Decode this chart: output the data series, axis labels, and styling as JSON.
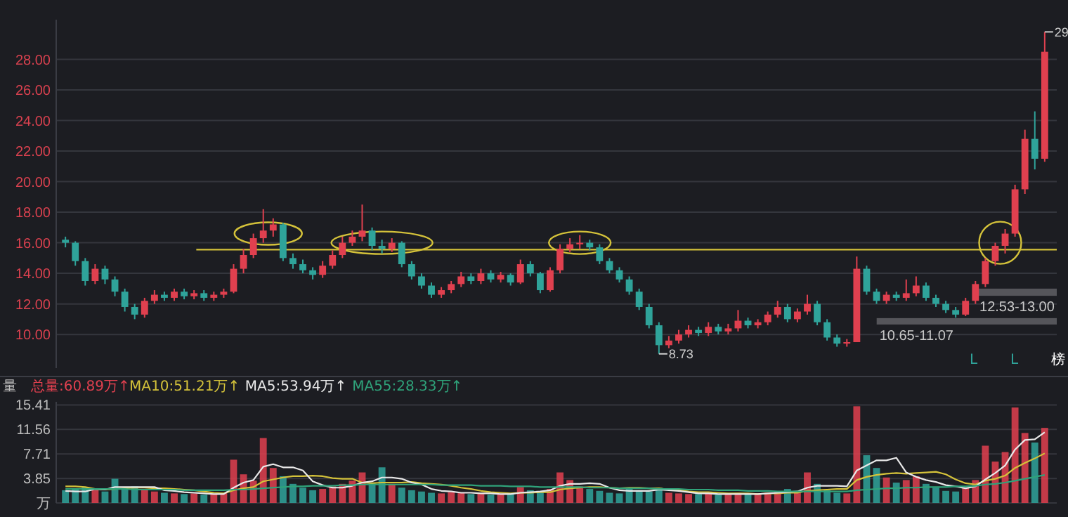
{
  "chart_data": [
    {
      "type": "candlestick",
      "categories": [
        null,
        null,
        null,
        null,
        null,
        null,
        null,
        null,
        null,
        null,
        null,
        null,
        null,
        null,
        null,
        null,
        null,
        null,
        null,
        null,
        null,
        null,
        null,
        null,
        null,
        null,
        null,
        null,
        null,
        null,
        null,
        null,
        null,
        null,
        null,
        null,
        null,
        null,
        null,
        null,
        null,
        null,
        null,
        null,
        null,
        null,
        null,
        null,
        null,
        null,
        null,
        null,
        null,
        null,
        null,
        null,
        null,
        null,
        null,
        null,
        null,
        null,
        null,
        null,
        null,
        null,
        null,
        null,
        null,
        null,
        null,
        null,
        null,
        null,
        null,
        null,
        null,
        null,
        null,
        null,
        null,
        null,
        null,
        null,
        null,
        null,
        null,
        null,
        null,
        null,
        null,
        null,
        null,
        null,
        null,
        null,
        null,
        null,
        null,
        null
      ],
      "ohlc": [
        [
          16.2,
          16.4,
          15.7,
          16.0
        ],
        [
          16.0,
          16.1,
          14.5,
          14.8
        ],
        [
          14.8,
          15.0,
          13.2,
          13.5
        ],
        [
          13.5,
          14.6,
          13.3,
          14.3
        ],
        [
          14.3,
          14.5,
          13.3,
          13.6
        ],
        [
          13.6,
          13.8,
          12.5,
          12.8
        ],
        [
          12.8,
          13.0,
          11.5,
          11.8
        ],
        [
          11.8,
          12.0,
          11.0,
          11.3
        ],
        [
          11.3,
          12.4,
          11.1,
          12.2
        ],
        [
          12.2,
          12.9,
          12.0,
          12.6
        ],
        [
          12.6,
          12.8,
          12.2,
          12.4
        ],
        [
          12.4,
          13.0,
          12.2,
          12.8
        ],
        [
          12.8,
          13.0,
          12.3,
          12.5
        ],
        [
          12.5,
          12.9,
          12.3,
          12.7
        ],
        [
          12.7,
          12.9,
          12.2,
          12.4
        ],
        [
          12.4,
          12.8,
          12.2,
          12.6
        ],
        [
          12.6,
          13.0,
          12.4,
          12.8
        ],
        [
          12.8,
          14.6,
          12.7,
          14.3
        ],
        [
          14.3,
          15.6,
          14.0,
          15.2
        ],
        [
          15.2,
          16.6,
          15.0,
          16.3
        ],
        [
          16.3,
          18.2,
          16.0,
          16.8
        ],
        [
          16.8,
          17.6,
          16.4,
          17.2
        ],
        [
          17.2,
          17.3,
          14.8,
          15.0
        ],
        [
          15.0,
          15.3,
          14.3,
          14.6
        ],
        [
          14.6,
          14.9,
          14.0,
          14.2
        ],
        [
          14.2,
          14.4,
          13.6,
          13.9
        ],
        [
          13.9,
          14.8,
          13.7,
          14.5
        ],
        [
          14.5,
          15.5,
          14.3,
          15.2
        ],
        [
          15.2,
          16.4,
          15.0,
          16.0
        ],
        [
          16.0,
          16.8,
          15.8,
          16.4
        ],
        [
          16.4,
          18.5,
          16.1,
          16.8
        ],
        [
          16.8,
          17.0,
          15.5,
          15.8
        ],
        [
          15.8,
          16.2,
          15.3,
          15.6
        ],
        [
          15.6,
          16.3,
          15.4,
          16.0
        ],
        [
          16.0,
          16.1,
          14.4,
          14.6
        ],
        [
          14.6,
          14.8,
          13.6,
          13.8
        ],
        [
          13.8,
          14.0,
          13.0,
          13.2
        ],
        [
          13.2,
          13.4,
          12.4,
          12.6
        ],
        [
          12.6,
          13.1,
          12.4,
          12.9
        ],
        [
          12.9,
          13.5,
          12.7,
          13.3
        ],
        [
          13.3,
          14.1,
          13.1,
          13.8
        ],
        [
          13.8,
          14.0,
          13.3,
          13.5
        ],
        [
          13.5,
          14.3,
          13.3,
          14.0
        ],
        [
          14.0,
          14.2,
          13.4,
          13.6
        ],
        [
          13.6,
          14.1,
          13.4,
          13.9
        ],
        [
          13.9,
          14.0,
          13.2,
          13.4
        ],
        [
          13.4,
          14.9,
          13.3,
          14.6
        ],
        [
          14.6,
          14.8,
          13.8,
          14.0
        ],
        [
          14.0,
          14.1,
          12.7,
          12.9
        ],
        [
          12.9,
          14.4,
          12.8,
          14.2
        ],
        [
          14.2,
          15.9,
          14.0,
          15.6
        ],
        [
          15.6,
          16.3,
          15.4,
          15.9
        ],
        [
          15.9,
          16.5,
          15.6,
          16.0
        ],
        [
          16.0,
          16.2,
          15.5,
          15.7
        ],
        [
          15.7,
          15.9,
          14.6,
          14.8
        ],
        [
          14.8,
          15.0,
          14.0,
          14.2
        ],
        [
          14.2,
          14.4,
          13.4,
          13.6
        ],
        [
          13.6,
          13.8,
          12.6,
          12.8
        ],
        [
          12.8,
          13.0,
          11.6,
          11.8
        ],
        [
          11.8,
          12.0,
          10.4,
          10.6
        ],
        [
          10.6,
          10.8,
          8.73,
          9.3
        ],
        [
          9.3,
          9.9,
          9.1,
          9.6
        ],
        [
          9.6,
          10.3,
          9.4,
          10.0
        ],
        [
          10.0,
          10.6,
          9.8,
          10.3
        ],
        [
          10.3,
          10.5,
          9.9,
          10.1
        ],
        [
          10.1,
          10.8,
          9.9,
          10.5
        ],
        [
          10.5,
          10.7,
          10.0,
          10.2
        ],
        [
          10.2,
          10.7,
          10.0,
          10.4
        ],
        [
          10.4,
          11.6,
          10.2,
          10.9
        ],
        [
          10.9,
          11.1,
          10.4,
          10.6
        ],
        [
          10.6,
          11.0,
          10.4,
          10.8
        ],
        [
          10.8,
          11.5,
          10.6,
          11.3
        ],
        [
          11.3,
          12.2,
          11.1,
          11.8
        ],
        [
          11.8,
          12.0,
          10.8,
          11.0
        ],
        [
          11.0,
          11.7,
          10.8,
          11.5
        ],
        [
          11.5,
          12.6,
          11.3,
          12.0
        ],
        [
          12.0,
          12.2,
          10.6,
          10.8
        ],
        [
          10.8,
          11.0,
          9.6,
          9.8
        ],
        [
          9.8,
          10.0,
          9.2,
          9.4
        ],
        [
          9.4,
          9.7,
          9.2,
          9.5
        ],
        [
          9.5,
          15.1,
          9.5,
          14.3
        ],
        [
          14.3,
          14.5,
          12.6,
          12.8
        ],
        [
          12.8,
          13.0,
          12.0,
          12.2
        ],
        [
          12.2,
          12.8,
          12.0,
          12.6
        ],
        [
          12.6,
          12.8,
          12.2,
          12.4
        ],
        [
          12.4,
          13.6,
          12.2,
          12.7
        ],
        [
          12.7,
          13.8,
          12.5,
          13.2
        ],
        [
          13.2,
          13.4,
          12.2,
          12.4
        ],
        [
          12.4,
          12.6,
          11.8,
          12.0
        ],
        [
          12.0,
          12.2,
          11.4,
          11.6
        ],
        [
          11.6,
          11.8,
          11.1,
          11.3
        ],
        [
          11.3,
          12.4,
          11.2,
          12.2
        ],
        [
          12.2,
          13.5,
          12.0,
          13.3
        ],
        [
          13.3,
          15.0,
          13.1,
          14.8
        ],
        [
          14.8,
          16.0,
          14.5,
          15.8
        ],
        [
          15.8,
          16.9,
          15.3,
          16.6
        ],
        [
          16.6,
          19.8,
          16.4,
          19.5
        ],
        [
          19.5,
          23.4,
          19.2,
          22.8
        ],
        [
          22.8,
          24.6,
          20.8,
          21.5
        ],
        [
          21.5,
          29.8,
          21.3,
          28.5
        ]
      ],
      "ylim": [
        7.8,
        30.6
      ],
      "yticks": [
        {
          "value": 10,
          "label": "10.00"
        },
        {
          "value": 12,
          "label": "12.00"
        },
        {
          "value": 14,
          "label": "14.00"
        },
        {
          "value": 16,
          "label": "16.00"
        },
        {
          "value": 18,
          "label": "18.00"
        },
        {
          "value": 20,
          "label": "20.00"
        },
        {
          "value": 22,
          "label": "22.00"
        },
        {
          "value": 24,
          "label": "24.00"
        },
        {
          "value": 26,
          "label": "26.00"
        },
        {
          "value": 28,
          "label": "28.00"
        }
      ],
      "grid": "y",
      "ref_lines": [
        {
          "axis": "y",
          "value": 15.55,
          "color": "#d4c23a"
        }
      ],
      "bands": [
        {
          "axis": "y",
          "from": 12.53,
          "to": 13.0,
          "label": "12.53-13.00",
          "color": "#6e6e72"
        },
        {
          "axis": "y",
          "from": 10.65,
          "to": 11.07,
          "label": "10.65-11.07",
          "color": "#6e6e72"
        }
      ],
      "annotations": [
        "8.73",
        "29",
        "L",
        "L",
        "榜"
      ]
    },
    {
      "type": "bar",
      "ylabel": "量",
      "categories": [
        null,
        null,
        null,
        null,
        null,
        null,
        null,
        null,
        null,
        null,
        null,
        null,
        null,
        null,
        null,
        null,
        null,
        null,
        null,
        null,
        null,
        null,
        null,
        null,
        null,
        null,
        null,
        null,
        null,
        null,
        null,
        null,
        null,
        null,
        null,
        null,
        null,
        null,
        null,
        null,
        null,
        null,
        null,
        null,
        null,
        null,
        null,
        null,
        null,
        null,
        null,
        null,
        null,
        null,
        null,
        null,
        null,
        null,
        null,
        null,
        null,
        null,
        null,
        null,
        null,
        null,
        null,
        null,
        null,
        null,
        null,
        null,
        null,
        null,
        null,
        null,
        null,
        null,
        null,
        null,
        null,
        null,
        null,
        null,
        null,
        null,
        null,
        null,
        null,
        null,
        null,
        null,
        null,
        null,
        null,
        null,
        null,
        null,
        null,
        null
      ],
      "ylim": [
        0,
        15.9
      ],
      "yticks": [
        {
          "value": 0,
          "label": "万"
        },
        3.85,
        7.71,
        11.56,
        15.41
      ],
      "grid": "y",
      "legend": "top left",
      "series": [
        {
          "name": "总量:60.89万↑",
          "type": "bar",
          "color": "#e0404f",
          "values": [
            2.0,
            2.2,
            2.5,
            2.0,
            1.8,
            3.8,
            2.2,
            2.6,
            2.0,
            1.8,
            1.6,
            1.5,
            1.4,
            1.5,
            1.3,
            1.4,
            1.6,
            6.8,
            4.5,
            3.5,
            10.2,
            5.5,
            4.2,
            3.0,
            2.4,
            2.0,
            2.2,
            2.6,
            3.0,
            3.5,
            4.8,
            3.2,
            5.6,
            3.0,
            2.4,
            2.0,
            1.8,
            1.6,
            1.5,
            1.7,
            1.6,
            1.4,
            1.5,
            1.3,
            1.4,
            1.5,
            2.5,
            2.0,
            1.8,
            2.2,
            4.8,
            3.6,
            2.6,
            2.2,
            1.9,
            1.6,
            1.5,
            2.4,
            2.0,
            1.8,
            2.4,
            1.6,
            1.5,
            1.4,
            1.4,
            1.5,
            1.3,
            1.4,
            1.6,
            1.4,
            1.5,
            1.6,
            1.8,
            2.2,
            1.7,
            4.8,
            3.0,
            2.0,
            1.6,
            1.5,
            15.2,
            7.5,
            5.5,
            4.0,
            3.2,
            3.6,
            4.2,
            3.0,
            2.4,
            1.9,
            1.8,
            2.4,
            3.6,
            9.0,
            6.5,
            8.0,
            15.0,
            11.0,
            9.5,
            11.8
          ],
          "colors": [
            "#2fa39a",
            "#2fa39a",
            "#2fa39a",
            "#e0404f",
            "#2fa39a",
            "#2fa39a",
            "#2fa39a",
            "#2fa39a",
            "#e0404f",
            "#e0404f",
            "#2fa39a",
            "#e0404f",
            "#2fa39a",
            "#e0404f",
            "#2fa39a",
            "#e0404f",
            "#e0404f",
            "#e0404f",
            "#e0404f",
            "#e0404f",
            "#e0404f",
            "#e0404f",
            "#2fa39a",
            "#2fa39a",
            "#2fa39a",
            "#2fa39a",
            "#e0404f",
            "#e0404f",
            "#e0404f",
            "#e0404f",
            "#e0404f",
            "#2fa39a",
            "#2fa39a",
            "#e0404f",
            "#2fa39a",
            "#2fa39a",
            "#2fa39a",
            "#2fa39a",
            "#e0404f",
            "#e0404f",
            "#e0404f",
            "#2fa39a",
            "#e0404f",
            "#2fa39a",
            "#e0404f",
            "#2fa39a",
            "#e0404f",
            "#2fa39a",
            "#2fa39a",
            "#e0404f",
            "#e0404f",
            "#e0404f",
            "#e0404f",
            "#2fa39a",
            "#2fa39a",
            "#2fa39a",
            "#2fa39a",
            "#2fa39a",
            "#2fa39a",
            "#2fa39a",
            "#2fa39a",
            "#e0404f",
            "#e0404f",
            "#e0404f",
            "#2fa39a",
            "#e0404f",
            "#2fa39a",
            "#e0404f",
            "#e0404f",
            "#2fa39a",
            "#e0404f",
            "#e0404f",
            "#e0404f",
            "#2fa39a",
            "#e0404f",
            "#e0404f",
            "#2fa39a",
            "#2fa39a",
            "#2fa39a",
            "#e0404f",
            "#e0404f",
            "#2fa39a",
            "#2fa39a",
            "#e0404f",
            "#2fa39a",
            "#e0404f",
            "#e0404f",
            "#2fa39a",
            "#2fa39a",
            "#2fa39a",
            "#2fa39a",
            "#e0404f",
            "#e0404f",
            "#e0404f",
            "#e0404f",
            "#e0404f",
            "#e0404f",
            "#e0404f",
            "#2fa39a",
            "#e0404f"
          ]
        },
        {
          "name": "MA10:51.21万↑",
          "type": "line",
          "color": "#d4c23a",
          "values": [
            2.6,
            2.6,
            2.5,
            2.2,
            2.1,
            2.2,
            2.3,
            2.4,
            2.4,
            2.3,
            2.3,
            2.2,
            2.1,
            2.0,
            1.8,
            1.6,
            1.5,
            2.0,
            2.3,
            2.5,
            3.4,
            3.7,
            4.0,
            4.2,
            4.2,
            4.3,
            4.2,
            3.9,
            3.8,
            3.8,
            3.2,
            3.1,
            3.2,
            3.2,
            3.2,
            3.3,
            3.1,
            3.0,
            2.9,
            2.7,
            2.4,
            2.2,
            1.9,
            1.7,
            1.6,
            1.5,
            1.6,
            1.6,
            1.7,
            1.7,
            2.1,
            2.3,
            2.4,
            2.5,
            2.5,
            2.4,
            2.3,
            2.4,
            2.4,
            2.3,
            2.3,
            2.1,
            2.0,
            1.8,
            1.7,
            1.7,
            1.6,
            1.5,
            1.5,
            1.5,
            1.4,
            1.5,
            1.5,
            1.6,
            1.6,
            1.9,
            2.0,
            2.1,
            2.2,
            2.2,
            3.6,
            4.1,
            4.4,
            4.6,
            4.7,
            4.6,
            4.7,
            4.8,
            4.9,
            4.5,
            3.7,
            3.1,
            2.9,
            3.5,
            3.8,
            4.3,
            5.5,
            6.3,
            7.0,
            7.8
          ]
        },
        {
          "name": "MA5:53.94万↑",
          "type": "line",
          "color": "#e8e8e8",
          "values": [
            1.9,
            1.8,
            1.8,
            2.2,
            2.1,
            2.5,
            2.5,
            2.5,
            2.5,
            2.5,
            2.0,
            1.9,
            1.7,
            1.6,
            1.5,
            1.4,
            1.4,
            2.4,
            3.2,
            3.6,
            5.7,
            6.1,
            5.6,
            5.6,
            5.1,
            3.4,
            2.8,
            2.4,
            2.4,
            2.7,
            3.2,
            3.4,
            4.0,
            4.0,
            3.8,
            3.2,
            2.9,
            2.2,
            1.9,
            1.8,
            1.6,
            1.6,
            1.5,
            1.5,
            1.4,
            1.4,
            1.6,
            1.7,
            1.8,
            2.0,
            2.7,
            3.0,
            3.0,
            3.1,
            3.0,
            2.4,
            2.0,
            1.9,
            1.9,
            1.9,
            2.1,
            2.0,
            1.9,
            1.7,
            1.5,
            1.5,
            1.4,
            1.4,
            1.4,
            1.4,
            1.4,
            1.5,
            1.6,
            1.7,
            1.8,
            2.4,
            2.7,
            2.7,
            2.7,
            2.6,
            5.1,
            5.9,
            6.7,
            6.7,
            7.1,
            4.8,
            4.1,
            3.6,
            3.3,
            2.8,
            2.6,
            2.3,
            2.6,
            3.7,
            4.7,
            5.9,
            8.4,
            9.9,
            10.0,
            11.1
          ]
        },
        {
          "name": "MA55:28.33万↑",
          "type": "line",
          "color": "#2fa37a",
          "values": [
            2.2,
            2.2,
            2.2,
            2.2,
            2.2,
            2.2,
            2.2,
            2.1,
            2.1,
            2.1,
            2.1,
            2.1,
            2.0,
            2.0,
            2.0,
            2.0,
            2.0,
            2.1,
            2.1,
            2.2,
            2.3,
            2.4,
            2.5,
            2.6,
            2.6,
            2.7,
            2.7,
            2.7,
            2.8,
            2.8,
            2.9,
            2.9,
            2.9,
            2.9,
            2.9,
            2.9,
            2.9,
            2.9,
            2.8,
            2.8,
            2.8,
            2.8,
            2.7,
            2.7,
            2.7,
            2.6,
            2.6,
            2.6,
            2.5,
            2.5,
            2.5,
            2.5,
            2.5,
            2.4,
            2.4,
            2.4,
            2.3,
            2.3,
            2.3,
            2.3,
            2.2,
            2.2,
            2.2,
            2.1,
            2.1,
            2.1,
            2.0,
            2.0,
            2.0,
            1.9,
            1.9,
            1.9,
            1.8,
            1.8,
            1.8,
            1.8,
            1.8,
            1.8,
            1.8,
            1.8,
            2.0,
            2.1,
            2.2,
            2.3,
            2.3,
            2.4,
            2.4,
            2.5,
            2.5,
            2.5,
            2.6,
            2.6,
            2.7,
            2.9,
            3.0,
            3.2,
            3.5,
            3.8,
            4.1,
            4.4
          ]
        }
      ]
    }
  ]
}
